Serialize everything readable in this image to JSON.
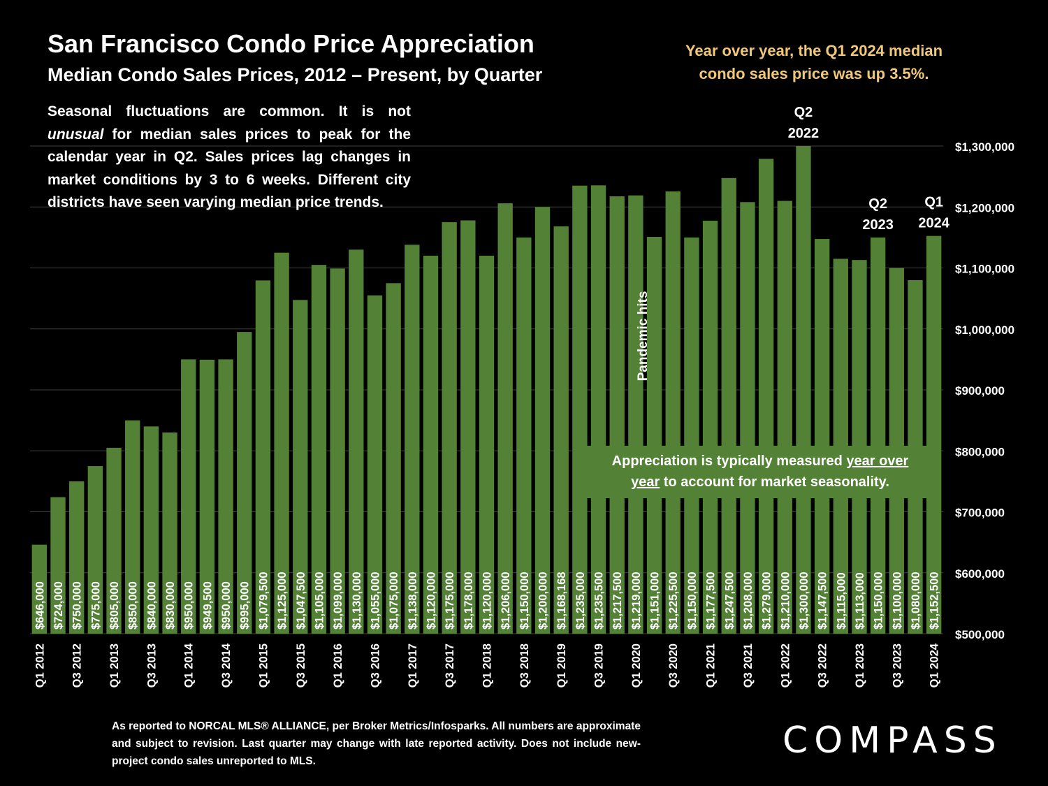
{
  "header": {
    "title": "San Francisco Condo Price Appreciation",
    "subtitle": "Median Condo Sales Prices, 2012 – Present, by Quarter"
  },
  "callouts": {
    "yoy_line1": "Year over year, the Q1 2024 median",
    "yoy_line2": "condo sales price was up 3.5%.",
    "note_part1": "Seasonal fluctuations are common. It is not ",
    "note_italic": "unusual",
    "note_part2": " for median sales prices to peak for the calendar year in Q2. Sales prices lag changes in market conditions by 3 to 6 weeks. Different city districts have seen varying median price trends.",
    "approx_part1": "Appreciation is typically measured ",
    "approx_underline1": "year over",
    "approx_underline2": "year",
    "approx_part2": " to account for market seasonality.",
    "pandemic": "Pandemic hits"
  },
  "peak_labels": [
    {
      "index": 41,
      "line1": "Q2",
      "line2": "2022"
    },
    {
      "index": 45,
      "line1": "Q2",
      "line2": "2023"
    },
    {
      "index": 48,
      "line1": "Q1",
      "line2": "2024"
    }
  ],
  "footer": {
    "footnote": "As reported to NORCAL MLS® ALLIANCE, per Broker Metrics/Infosparks. All numbers are approximate and subject to revision. Last quarter may change with late reported activity. Does not include new-project condo sales unreported to MLS.",
    "logo": "COMPASS"
  },
  "colors": {
    "bar": "#538135",
    "background": "#000000",
    "gridline": "#404040",
    "yoy_text": "#f0c878"
  },
  "chart_data": {
    "type": "bar",
    "title": "San Francisco Condo Price Appreciation",
    "subtitle": "Median Condo Sales Prices, 2012 – Present, by Quarter",
    "xlabel": "",
    "ylabel": "",
    "ylim": [
      500000,
      1300000
    ],
    "y_ticks": [
      500000,
      600000,
      700000,
      800000,
      900000,
      1000000,
      1100000,
      1200000,
      1300000
    ],
    "y_tick_labels": [
      "$500,000",
      "$600,000",
      "$700,000",
      "$800,000",
      "$900,000",
      "$1,000,000",
      "$1,100,000",
      "$1,200,000",
      "$1,300,000"
    ],
    "grid": true,
    "categories": [
      "Q1 2012",
      "Q2 2012",
      "Q3 2012",
      "Q4 2012",
      "Q1 2013",
      "Q2 2013",
      "Q3 2013",
      "Q4 2013",
      "Q1 2014",
      "Q2 2014",
      "Q3 2014",
      "Q4 2014",
      "Q1 2015",
      "Q2 2015",
      "Q3 2015",
      "Q4 2015",
      "Q1 2016",
      "Q2 2016",
      "Q3 2016",
      "Q4 2016",
      "Q1 2017",
      "Q2 2017",
      "Q3 2017",
      "Q4 2017",
      "Q1 2018",
      "Q2 2018",
      "Q3 2018",
      "Q4 2018",
      "Q1 2019",
      "Q2 2019",
      "Q3 2019",
      "Q4 2019",
      "Q1 2020",
      "Q2 2020",
      "Q3 2020",
      "Q4 2020",
      "Q1 2021",
      "Q2 2021",
      "Q3 2021",
      "Q4 2021",
      "Q1 2022",
      "Q2 2022",
      "Q3 2022",
      "Q4 2022",
      "Q1 2023",
      "Q2 2023",
      "Q3 2023",
      "Q4 2023",
      "Q1 2024"
    ],
    "shown_x_labels": [
      "Q1 2012",
      "Q3 2012",
      "Q1 2013",
      "Q3 2013",
      "Q1 2014",
      "Q3 2014",
      "Q1 2015",
      "Q3 2015",
      "Q1 2016",
      "Q3 2016",
      "Q1 2017",
      "Q3 2017",
      "Q1 2018",
      "Q3 2018",
      "Q1 2019",
      "Q3 2019",
      "Q1 2020",
      "Q3 2020",
      "Q1 2021",
      "Q3 2021",
      "Q1 2022",
      "Q3 2022",
      "Q1 2023",
      "Q3 2023",
      "Q1 2024"
    ],
    "values": [
      646000,
      724000,
      750000,
      775000,
      805000,
      850000,
      840000,
      830000,
      950000,
      949500,
      950000,
      995000,
      1079500,
      1125000,
      1047500,
      1105000,
      1099000,
      1130000,
      1055000,
      1075000,
      1138000,
      1120000,
      1175000,
      1178000,
      1120000,
      1206000,
      1150000,
      1200000,
      1168168,
      1235000,
      1235500,
      1217500,
      1219000,
      1151000,
      1225500,
      1150000,
      1177500,
      1247500,
      1208000,
      1279000,
      1210000,
      1300000,
      1147500,
      1115000,
      1113000,
      1150000,
      1100000,
      1080000,
      1152500
    ],
    "value_labels": [
      "$646,000",
      "$724,000",
      "$750,000",
      "$775,000",
      "$805,000",
      "$850,000",
      "$840,000",
      "$830,000",
      "$950,000",
      "$949,500",
      "$950,000",
      "$995,000",
      "$1,079,500",
      "$1,125,000",
      "$1,047,500",
      "$1,105,000",
      "$1,099,000",
      "$1,130,000",
      "$1,055,000",
      "$1,075,000",
      "$1,138,000",
      "$1,120,000",
      "$1,175,000",
      "$1,178,000",
      "$1,120,000",
      "$1,206,000",
      "$1,150,000",
      "$1,200,000",
      "$1,168,168",
      "$1,235,000",
      "$1,235,500",
      "$1,217,500",
      "$1,219,000",
      "$1,151,000",
      "$1,225,500",
      "$1,150,000",
      "$1,177,500",
      "$1,247,500",
      "$1,208,000",
      "$1,279,000",
      "$1,210,000",
      "$1,300,000",
      "$1,147,500",
      "$1,115,000",
      "$1,113,000",
      "$1,150,000",
      "$1,100,000",
      "$1,080,000",
      "$1,152,500"
    ]
  }
}
